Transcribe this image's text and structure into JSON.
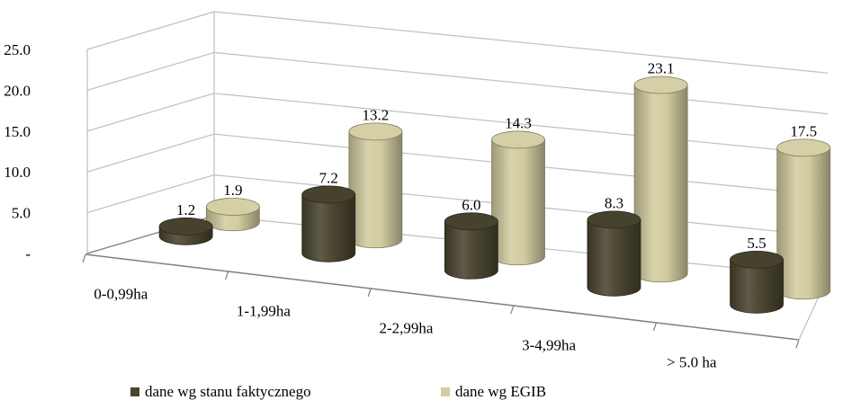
{
  "chart_data": {
    "type": "bar",
    "style": "3d-cylinder",
    "categories": [
      "0-0,99ha",
      "1-1,99ha",
      "2-2,99ha",
      "3-4,99ha",
      "> 5.0 ha"
    ],
    "series": [
      {
        "name": "dane wg stanu faktycznego",
        "values": [
          1.2,
          7.2,
          6.0,
          8.3,
          5.5
        ],
        "color": "#4a4530"
      },
      {
        "name": "dane wg EGIB",
        "values": [
          1.9,
          13.2,
          14.3,
          23.1,
          17.5
        ],
        "color": "#d2cca0"
      }
    ],
    "y_ticks": [
      "-",
      "5.0",
      "10.0",
      "15.0",
      "20.0",
      "25.0"
    ],
    "ylim": [
      0,
      25
    ],
    "grid": true,
    "legend_position": "bottom"
  }
}
